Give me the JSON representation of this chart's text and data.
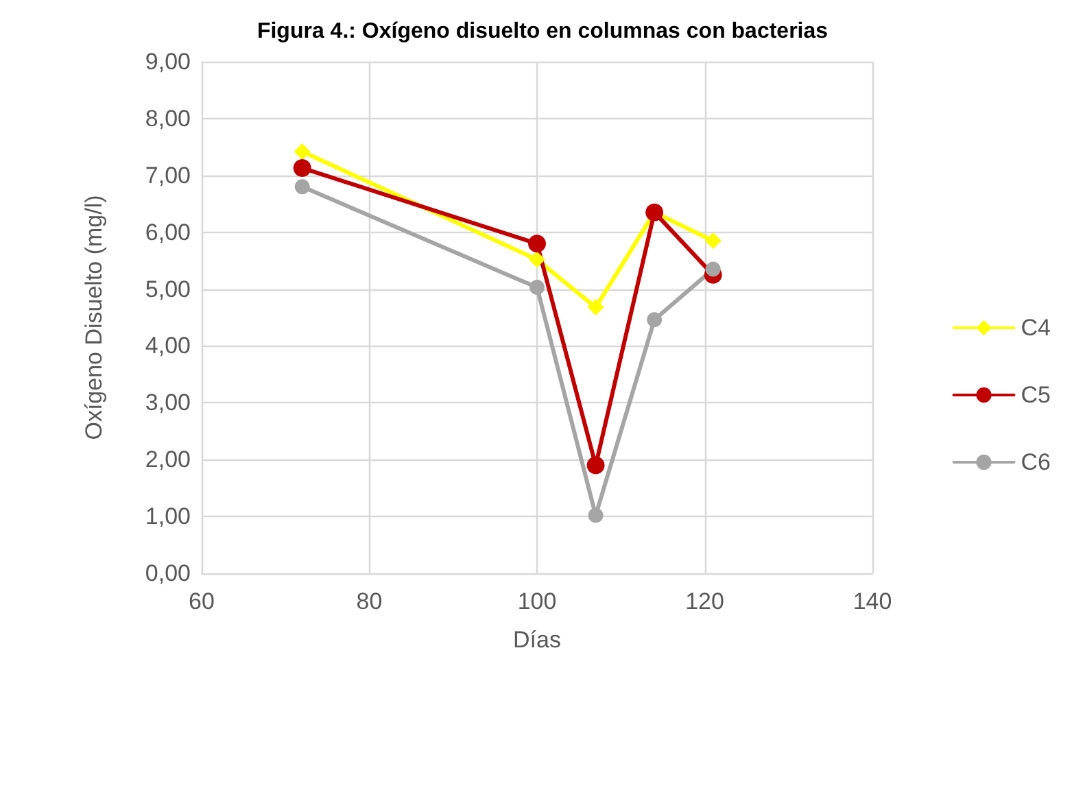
{
  "chart_data": {
    "type": "line",
    "title": "Figura 4.: Oxígeno disuelto en columnas con bacterias",
    "xlabel": "Días",
    "ylabel": "Oxígeno Disuelto (mg/l)",
    "x": [
      72,
      100,
      107,
      114,
      121
    ],
    "series": [
      {
        "name": "C4",
        "color": "#ffff00",
        "marker": "diamond",
        "values": [
          7.42,
          5.52,
          4.68,
          6.35,
          5.85
        ]
      },
      {
        "name": "C5",
        "color": "#c00000",
        "marker": "circle",
        "values": [
          7.13,
          5.8,
          1.9,
          6.35,
          5.25
        ]
      },
      {
        "name": "C6",
        "color": "#a5a5a5",
        "marker": "circle",
        "values": [
          6.8,
          5.03,
          1.02,
          4.46,
          5.35
        ]
      }
    ],
    "xlim": [
      60,
      140
    ],
    "xticks": [
      60,
      80,
      100,
      120,
      140
    ],
    "ylim": [
      0,
      9
    ],
    "yticks": [
      {
        "value": 0,
        "label": "0,00"
      },
      {
        "value": 1,
        "label": "1,00"
      },
      {
        "value": 2,
        "label": "2,00"
      },
      {
        "value": 3,
        "label": "3,00"
      },
      {
        "value": 4,
        "label": "4,00"
      },
      {
        "value": 5,
        "label": "5,00"
      },
      {
        "value": 6,
        "label": "6,00"
      },
      {
        "value": 7,
        "label": "7,00"
      },
      {
        "value": 8,
        "label": "8,00"
      },
      {
        "value": 9,
        "label": "9,00"
      }
    ],
    "grid": true,
    "legend": "right",
    "line_style": "solid"
  }
}
